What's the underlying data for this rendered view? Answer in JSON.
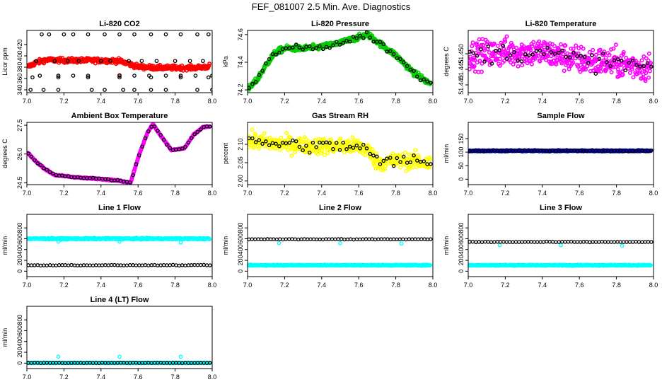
{
  "figure_title": "FEF_081007  2.5 Min. Ave. Diagnostics",
  "colors": {
    "red": "#ff0000",
    "green": "#00cc00",
    "magenta": "#ff00ff",
    "yellow": "#ffff00",
    "blue": "#0000cc",
    "cyan": "#00ffff",
    "black": "#000000"
  },
  "chart_data": [
    {
      "type": "scatter",
      "title": "Li-820 CO2",
      "xlabel": "",
      "ylabel": "Licor ppm",
      "xlim": [
        7.0,
        8.0
      ],
      "ylim": [
        335,
        445
      ],
      "xticks": [
        "7.0",
        "7.2",
        "7.4",
        "7.6",
        "7.8",
        "8.0"
      ],
      "yticks": [
        {
          "v": 340,
          "t": "340"
        },
        {
          "v": 360,
          "t": "360"
        },
        {
          "v": 380,
          "t": "380"
        },
        {
          "v": 400,
          "t": "400"
        },
        {
          "v": 420,
          "t": "420"
        }
      ],
      "series": [
        {
          "color": "red",
          "kind": "dense",
          "x": [
            7.0,
            7.05,
            7.1,
            7.2,
            7.3,
            7.4,
            7.5,
            7.55,
            7.6,
            7.7,
            7.8,
            7.9,
            7.98,
            8.0
          ],
          "y": [
            380,
            388,
            393,
            392,
            392,
            392,
            391,
            386,
            381,
            379,
            379,
            379,
            381,
            387
          ],
          "spread": 4
        },
        {
          "color": "red",
          "kind": "points",
          "x": [
            7.17,
            7.5
          ],
          "y": [
            365,
            366
          ]
        },
        {
          "color": "black",
          "kind": "points",
          "x": [
            7.08,
            7.12,
            7.2,
            7.25,
            7.33,
            7.42,
            7.5,
            7.58,
            7.67,
            7.75,
            7.83,
            7.92,
            7.98,
            7.03,
            7.17,
            7.33,
            7.5,
            7.67,
            7.83,
            7.98,
            7.05,
            7.15,
            7.22,
            7.28,
            7.4,
            7.45,
            7.55,
            7.62,
            7.7,
            7.8,
            7.88,
            7.95,
            7.07,
            7.17,
            7.25,
            7.33,
            7.5,
            7.58,
            7.66,
            7.75,
            7.83,
            7.91,
            8.0,
            7.02,
            7.09,
            7.17,
            7.35,
            7.42,
            7.52,
            7.58,
            7.67,
            7.75,
            7.92,
            8.0
          ],
          "y": [
            438,
            438,
            438,
            438,
            438,
            438,
            438,
            438,
            438,
            438,
            438,
            438,
            438,
            362,
            362,
            362,
            362,
            362,
            362,
            362,
            391,
            391,
            391,
            391,
            391,
            391,
            391,
            391,
            391,
            391,
            391,
            391,
            365,
            365,
            365,
            365,
            365,
            365,
            365,
            365,
            365,
            365,
            365,
            340,
            340,
            340,
            340,
            340,
            340,
            340,
            340,
            340,
            340,
            340
          ]
        }
      ]
    },
    {
      "type": "scatter",
      "title": "Li-820 Pressure",
      "xlabel": "",
      "ylabel": "kPa",
      "xlim": [
        7.0,
        8.0
      ],
      "ylim": [
        74.18,
        74.63
      ],
      "xticks": [
        "7.0",
        "7.2",
        "7.4",
        "7.6",
        "7.8",
        "8.0"
      ],
      "yticks": [
        {
          "v": 74.2,
          "t": "74.2"
        },
        {
          "v": 74.4,
          "t": "74.4"
        },
        {
          "v": 74.6,
          "t": "74.6"
        }
      ],
      "series": [
        {
          "color": "green",
          "kind": "dense",
          "x": [
            7.0,
            7.05,
            7.1,
            7.15,
            7.2,
            7.3,
            7.4,
            7.5,
            7.6,
            7.65,
            7.7,
            7.8,
            7.9,
            7.98
          ],
          "y": [
            74.2,
            74.27,
            74.38,
            74.47,
            74.5,
            74.5,
            74.51,
            74.54,
            74.58,
            74.6,
            74.55,
            74.45,
            74.32,
            74.25
          ],
          "spread": 0.02
        },
        {
          "color": "black",
          "kind": "trend",
          "n": 55,
          "spread": 0.025,
          "x": [
            7.0,
            7.05,
            7.1,
            7.15,
            7.2,
            7.3,
            7.4,
            7.5,
            7.6,
            7.65,
            7.7,
            7.8,
            7.9,
            7.98
          ],
          "y": [
            74.2,
            74.27,
            74.38,
            74.47,
            74.5,
            74.5,
            74.51,
            74.54,
            74.58,
            74.6,
            74.55,
            74.45,
            74.32,
            74.25
          ]
        }
      ]
    },
    {
      "type": "scatter",
      "title": "Li-820 Temperature",
      "xlabel": "",
      "ylabel": "degrees C",
      "xlim": [
        7.0,
        8.0
      ],
      "ylim": [
        51.4375,
        51.4575
      ],
      "xticks": [
        "7.0",
        "7.2",
        "7.4",
        "7.6",
        "7.8",
        "8.0"
      ],
      "yticks": [
        {
          "v": 51.44,
          "t": "51.440"
        },
        {
          "v": 51.445,
          "t": "51.445"
        },
        {
          "v": 51.45,
          "t": "51.450"
        }
      ],
      "series": [
        {
          "color": "magenta",
          "kind": "dense",
          "x": [
            7.0,
            7.2,
            7.4,
            7.6,
            7.8,
            8.0
          ],
          "y": [
            51.4495,
            51.4505,
            51.4505,
            51.448,
            51.447,
            51.4455
          ],
          "spread": 0.0045
        },
        {
          "color": "black",
          "kind": "trend",
          "n": 50,
          "spread": 0.003,
          "x": [
            7.0,
            7.2,
            7.4,
            7.6,
            7.8,
            8.0
          ],
          "y": [
            51.4495,
            51.4505,
            51.4505,
            51.448,
            51.447,
            51.4455
          ]
        }
      ]
    },
    {
      "type": "scatter",
      "title": "Ambient Box Temperature",
      "xlabel": "",
      "ylabel": "degrees C",
      "xlim": [
        7.0,
        8.0
      ],
      "ylim": [
        24.4,
        27.65
      ],
      "xticks": [
        "7.0",
        "7.2",
        "7.4",
        "7.6",
        "7.8",
        "8.0"
      ],
      "yticks": [
        {
          "v": 24.5,
          "t": "24.5"
        },
        {
          "v": 26.0,
          "t": "26.0"
        },
        {
          "v": 27.5,
          "t": "27.5"
        }
      ],
      "series": [
        {
          "color": "magenta",
          "kind": "dense",
          "x": [
            7.0,
            7.05,
            7.1,
            7.15,
            7.2,
            7.3,
            7.4,
            7.5,
            7.56,
            7.6,
            7.65,
            7.68,
            7.72,
            7.78,
            7.85,
            7.9,
            7.95,
            8.0
          ],
          "y": [
            26.1,
            25.6,
            25.2,
            24.9,
            24.85,
            24.75,
            24.7,
            24.6,
            24.5,
            25.8,
            27.1,
            27.55,
            27.0,
            26.2,
            26.3,
            27.0,
            27.4,
            27.45
          ],
          "spread": 0.03
        },
        {
          "color": "black",
          "kind": "trend",
          "n": 60,
          "spread": 0.03,
          "x": [
            7.0,
            7.05,
            7.1,
            7.15,
            7.2,
            7.3,
            7.4,
            7.5,
            7.56,
            7.6,
            7.65,
            7.68,
            7.72,
            7.78,
            7.85,
            7.9,
            7.95,
            8.0
          ],
          "y": [
            26.1,
            25.6,
            25.2,
            24.9,
            24.85,
            24.75,
            24.7,
            24.6,
            24.5,
            25.8,
            27.1,
            27.55,
            27.0,
            26.2,
            26.3,
            27.0,
            27.4,
            27.45
          ]
        }
      ]
    },
    {
      "type": "scatter",
      "title": "Gas Stream RH",
      "xlabel": "",
      "ylabel": "percent",
      "xlim": [
        7.0,
        8.0
      ],
      "ylim": [
        1.99,
        2.16
      ],
      "xticks": [
        "7.0",
        "7.2",
        "7.4",
        "7.6",
        "7.8",
        "8.0"
      ],
      "yticks": [
        {
          "v": 2.0,
          "t": "2.00"
        },
        {
          "v": 2.05,
          "t": "2.05"
        },
        {
          "v": 2.1,
          "t": "2.10"
        }
      ],
      "series": [
        {
          "color": "yellow",
          "kind": "dense",
          "x": [
            7.0,
            7.2,
            7.4,
            7.6,
            7.65,
            7.7,
            7.8,
            7.9,
            8.0
          ],
          "y": [
            2.11,
            2.1,
            2.095,
            2.095,
            2.085,
            2.05,
            2.055,
            2.055,
            2.045
          ],
          "spread": 0.022
        },
        {
          "color": "black",
          "kind": "trend",
          "n": 55,
          "spread": 0.018,
          "x": [
            7.0,
            7.2,
            7.4,
            7.6,
            7.65,
            7.7,
            7.8,
            7.9,
            8.0
          ],
          "y": [
            2.11,
            2.1,
            2.095,
            2.095,
            2.085,
            2.05,
            2.055,
            2.055,
            2.045
          ]
        }
      ]
    },
    {
      "type": "scatter",
      "title": "Sample Flow",
      "xlabel": "",
      "ylabel": "ml/min",
      "xlim": [
        7.0,
        8.0
      ],
      "ylim": [
        -20,
        210
      ],
      "xticks": [
        "7.0",
        "7.2",
        "7.4",
        "7.6",
        "7.8",
        "8.0"
      ],
      "yticks": [
        {
          "v": 0,
          "t": "0"
        },
        {
          "v": 50,
          "t": "50"
        },
        {
          "v": 100,
          "t": "100"
        },
        {
          "v": 150,
          "t": "150"
        }
      ],
      "series": [
        {
          "color": "blue",
          "kind": "dense",
          "x": [
            7.0,
            8.0
          ],
          "y": [
            105,
            105
          ],
          "spread": 2
        },
        {
          "color": "black",
          "kind": "trend",
          "n": 60,
          "spread": 2,
          "x": [
            7.0,
            8.0
          ],
          "y": [
            105,
            105
          ]
        }
      ]
    },
    {
      "type": "scatter",
      "title": "Line 1 Flow",
      "xlabel": "",
      "ylabel": "ml/min",
      "xlim": [
        7.0,
        8.0
      ],
      "ylim": [
        -100,
        1050
      ],
      "xticks": [
        "7.0",
        "7.2",
        "7.4",
        "7.6",
        "7.8",
        "8.0"
      ],
      "yticks": [
        {
          "v": 0,
          "t": "0"
        },
        {
          "v": 200,
          "t": "200"
        },
        {
          "v": 400,
          "t": "400"
        },
        {
          "v": 600,
          "t": "600"
        },
        {
          "v": 800,
          "t": "800"
        }
      ],
      "series": [
        {
          "color": "cyan",
          "kind": "dense",
          "x": [
            7.0,
            8.0
          ],
          "y": [
            600,
            600
          ],
          "spread": 12
        },
        {
          "color": "cyan",
          "kind": "points",
          "x": [
            7.17,
            7.5,
            7.83
          ],
          "y": [
            545,
            545,
            530
          ]
        },
        {
          "color": "black",
          "kind": "trend",
          "n": 60,
          "spread": 5,
          "x": [
            7.0,
            8.0
          ],
          "y": [
            110,
            110
          ]
        }
      ]
    },
    {
      "type": "scatter",
      "title": "Line 2 Flow",
      "xlabel": "",
      "ylabel": "ml/min",
      "xlim": [
        7.0,
        8.0
      ],
      "ylim": [
        -100,
        1050
      ],
      "xticks": [
        "7.0",
        "7.2",
        "7.4",
        "7.6",
        "7.8",
        "8.0"
      ],
      "yticks": [
        {
          "v": 0,
          "t": "0"
        },
        {
          "v": 200,
          "t": "200"
        },
        {
          "v": 400,
          "t": "400"
        },
        {
          "v": 600,
          "t": "600"
        },
        {
          "v": 800,
          "t": "800"
        }
      ],
      "series": [
        {
          "color": "cyan",
          "kind": "dense",
          "x": [
            7.0,
            8.0
          ],
          "y": [
            110,
            110
          ],
          "spread": 8
        },
        {
          "color": "cyan",
          "kind": "points",
          "x": [
            7.17,
            7.5,
            7.83
          ],
          "y": [
            520,
            520,
            510
          ]
        },
        {
          "color": "black",
          "kind": "trend",
          "n": 60,
          "spread": 5,
          "x": [
            7.0,
            8.0
          ],
          "y": [
            590,
            590
          ]
        }
      ]
    },
    {
      "type": "scatter",
      "title": "Line 3 Flow",
      "xlabel": "",
      "ylabel": "ml/min",
      "xlim": [
        7.0,
        8.0
      ],
      "ylim": [
        -100,
        1050
      ],
      "xticks": [
        "7.0",
        "7.2",
        "7.4",
        "7.6",
        "7.8",
        "8.0"
      ],
      "yticks": [
        {
          "v": 0,
          "t": "0"
        },
        {
          "v": 200,
          "t": "200"
        },
        {
          "v": 400,
          "t": "400"
        },
        {
          "v": 600,
          "t": "600"
        },
        {
          "v": 800,
          "t": "800"
        }
      ],
      "series": [
        {
          "color": "cyan",
          "kind": "dense",
          "x": [
            7.0,
            8.0
          ],
          "y": [
            110,
            110
          ],
          "spread": 8
        },
        {
          "color": "cyan",
          "kind": "points",
          "x": [
            7.17,
            7.5,
            7.83
          ],
          "y": [
            480,
            480,
            470
          ]
        },
        {
          "color": "black",
          "kind": "trend",
          "n": 60,
          "spread": 5,
          "x": [
            7.0,
            8.0
          ],
          "y": [
            540,
            540
          ]
        }
      ]
    },
    {
      "type": "scatter",
      "title": "Line 4 (LT) Flow",
      "xlabel": "",
      "ylabel": "ml/min",
      "xlim": [
        7.0,
        8.0
      ],
      "ylim": [
        -100,
        1050
      ],
      "xticks": [
        "7.0",
        "7.2",
        "7.4",
        "7.6",
        "7.8",
        "8.0"
      ],
      "yticks": [
        {
          "v": 0,
          "t": "0"
        },
        {
          "v": 200,
          "t": "200"
        },
        {
          "v": 400,
          "t": "400"
        },
        {
          "v": 600,
          "t": "600"
        },
        {
          "v": 800,
          "t": "800"
        }
      ],
      "series": [
        {
          "color": "cyan",
          "kind": "dense",
          "x": [
            7.0,
            8.0
          ],
          "y": [
            5,
            5
          ],
          "spread": 4
        },
        {
          "color": "cyan",
          "kind": "points",
          "x": [
            7.17,
            7.5,
            7.83
          ],
          "y": [
            120,
            120,
            120
          ]
        },
        {
          "color": "black",
          "kind": "trend",
          "n": 60,
          "spread": 3,
          "x": [
            7.0,
            8.0
          ],
          "y": [
            5,
            5
          ]
        }
      ]
    }
  ]
}
